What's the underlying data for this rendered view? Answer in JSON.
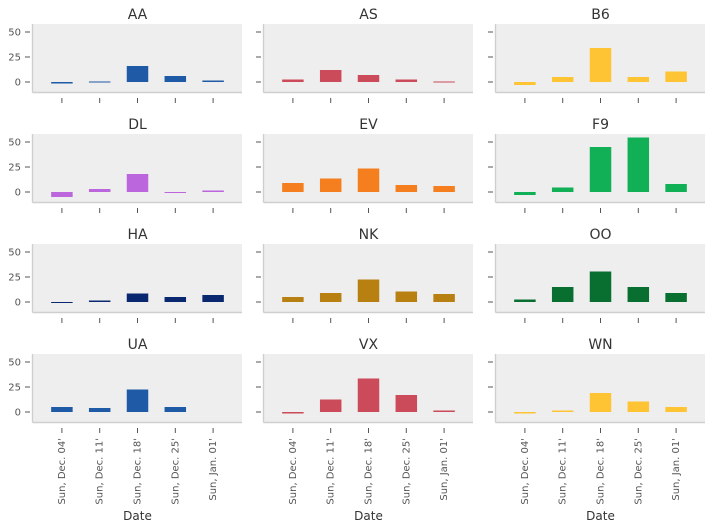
{
  "chart_data": {
    "type": "bar",
    "layout": "small-multiples 4x3",
    "xlabel": "Date",
    "ylim": [
      -10,
      58
    ],
    "yticks": [
      0,
      25,
      50
    ],
    "categories": [
      "Sun, Dec. 04'",
      "Sun, Dec. 11'",
      "Sun, Dec. 18'",
      "Sun, Dec. 25'",
      "Sun, Jan. 01'"
    ],
    "panels": [
      {
        "title": "AA",
        "color": "#1f5aa6",
        "values": [
          -1.5,
          0.5,
          16,
          6,
          1.5
        ]
      },
      {
        "title": "AS",
        "color": "#cc4b5a",
        "values": [
          2.5,
          12,
          7,
          2.5,
          0.5
        ]
      },
      {
        "title": "B6",
        "color": "#ffc433",
        "values": [
          -3,
          5,
          34,
          5,
          10.5
        ]
      },
      {
        "title": "DL",
        "color": "#bb66dd",
        "values": [
          -5,
          3,
          18,
          -1,
          1.5
        ]
      },
      {
        "title": "EV",
        "color": "#f57f1f",
        "values": [
          9,
          13.5,
          23.5,
          7,
          6
        ]
      },
      {
        "title": "F9",
        "color": "#11b056",
        "values": [
          -3,
          4.5,
          45,
          54.5,
          8
        ]
      },
      {
        "title": "HA",
        "color": "#0a2870",
        "values": [
          -1,
          1.5,
          8.5,
          5,
          7
        ]
      },
      {
        "title": "NK",
        "color": "#b87f11",
        "values": [
          5,
          9,
          22.5,
          10.5,
          8
        ]
      },
      {
        "title": "OO",
        "color": "#086f31",
        "values": [
          2.5,
          15,
          30.5,
          15,
          9
        ]
      },
      {
        "title": "UA",
        "color": "#1f5aa6",
        "values": [
          5,
          4,
          22.5,
          5,
          0
        ]
      },
      {
        "title": "VX",
        "color": "#cc4b5a",
        "values": [
          -1.5,
          12.5,
          33.5,
          17,
          1.5
        ]
      },
      {
        "title": "WN",
        "color": "#ffc433",
        "values": [
          -1.5,
          1.5,
          19,
          10.5,
          5
        ]
      }
    ]
  }
}
